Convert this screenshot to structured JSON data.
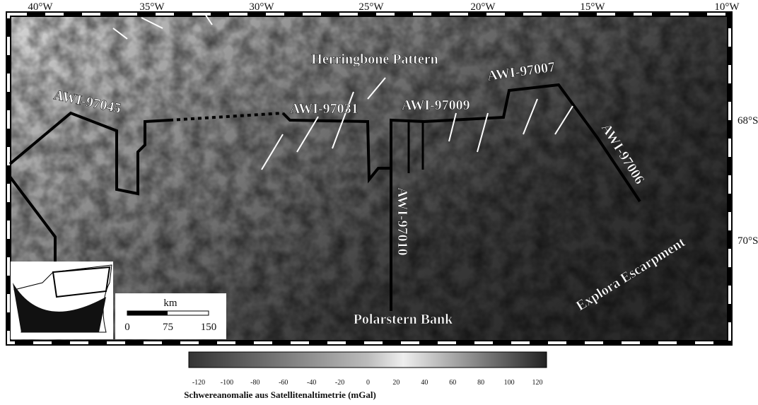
{
  "map": {
    "longitudes": [
      "40°W",
      "35°W",
      "30°W",
      "25°W",
      "20°W",
      "15°W",
      "10°W"
    ],
    "latitudes": [
      "68°S",
      "70°S"
    ],
    "labels": {
      "herringbone": "Herringbone Pattern",
      "awi97045": "AWI-97045",
      "awi97031": "AWI-97031",
      "awi97009": "AWI-97009",
      "awi97007": "AWI-97007",
      "awi97006": "AWI-97006",
      "awi97010": "AWI-97010",
      "explora": "Explora Escarpment",
      "polarstern": "Polarstern Bank"
    }
  },
  "scale_bar": {
    "unit": "km",
    "ticks": [
      0,
      75,
      150
    ]
  },
  "colorbar": {
    "ticks": [
      -120,
      -100,
      -80,
      -60,
      -40,
      -20,
      0,
      20,
      40,
      60,
      80,
      100,
      120
    ],
    "title": "Schwereanomalie aus Satellitenaltimetrie (mGal)"
  }
}
